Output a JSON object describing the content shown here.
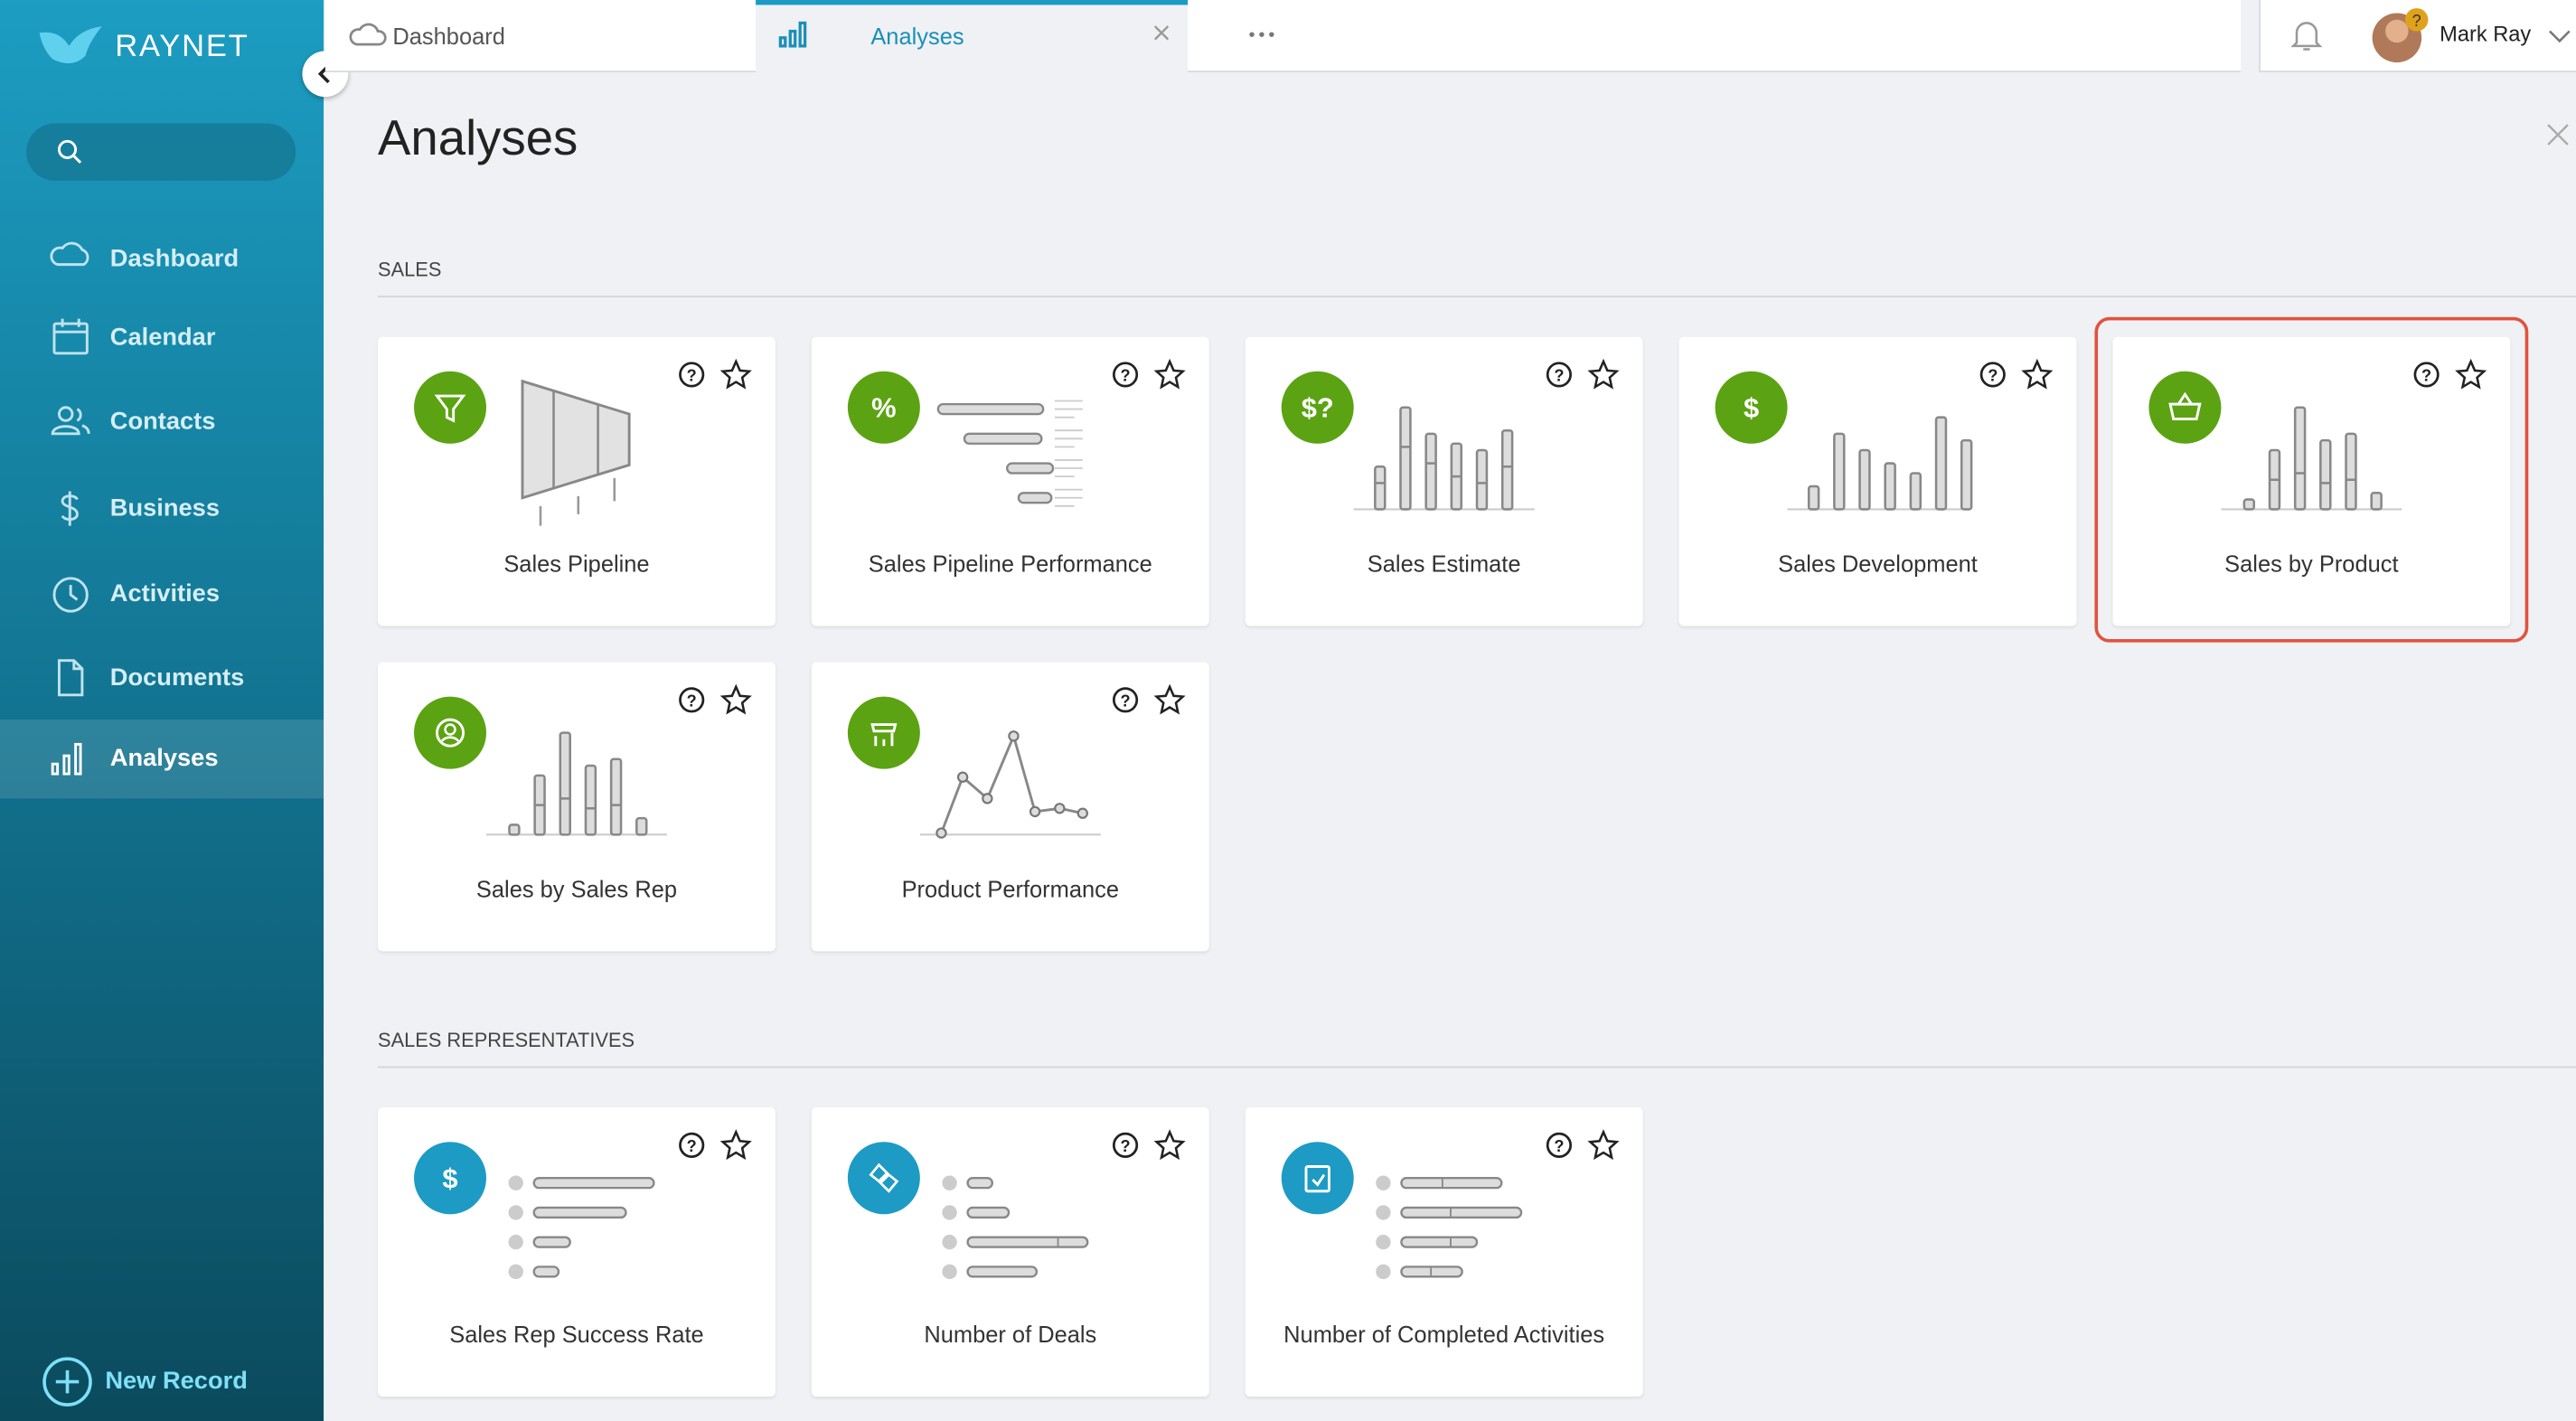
{
  "brand": "RAYNET",
  "tabs": [
    {
      "label": "Dashboard"
    },
    {
      "label": "Analyses"
    }
  ],
  "user": {
    "name": "Mark Ray"
  },
  "nav": [
    "Dashboard",
    "Calendar",
    "Contacts",
    "Business",
    "Activities",
    "Documents",
    "Analyses"
  ],
  "new_record": "New Record",
  "page": {
    "title": "Analyses"
  },
  "sections": [
    {
      "title": "SALES",
      "cards": [
        {
          "label": "Sales Pipeline"
        },
        {
          "label": "Sales Pipeline Performance",
          "icon": "%"
        },
        {
          "label": "Sales Estimate",
          "icon": "$?"
        },
        {
          "label": "Sales Development",
          "icon": "$"
        },
        {
          "label": "Sales by Product"
        },
        {
          "label": "Sales by Sales Rep"
        },
        {
          "label": "Product Performance"
        }
      ]
    },
    {
      "title": "SALES REPRESENTATIVES",
      "cards": [
        {
          "label": "Sales Rep Success Rate",
          "icon": "$"
        },
        {
          "label": "Number of Deals"
        },
        {
          "label": "Number of Completed Activities"
        }
      ]
    }
  ]
}
